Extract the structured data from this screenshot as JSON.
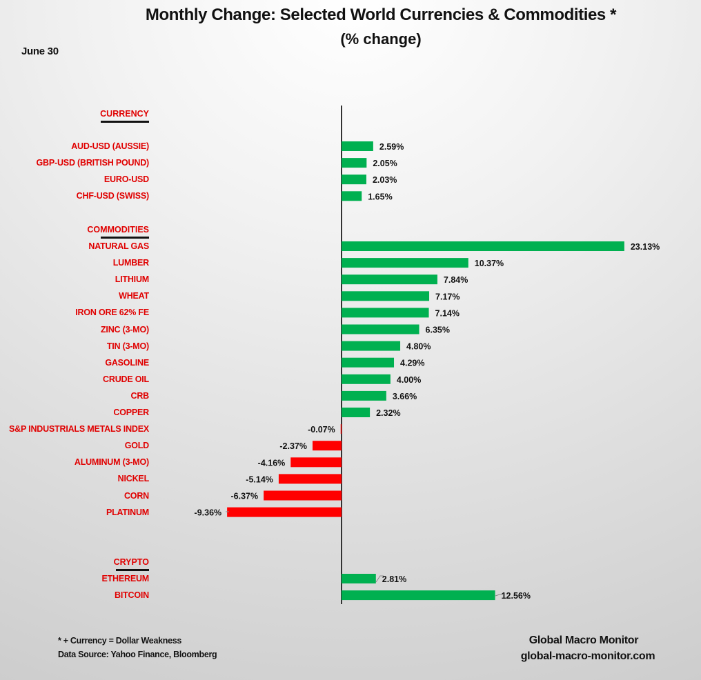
{
  "chart_data": {
    "type": "bar",
    "orientation": "horizontal",
    "title": "Monthly Change: Selected World Currencies & Commodities *",
    "subtitle": "(% change)",
    "date_label": "June 30",
    "xlabel": "",
    "ylabel": "",
    "grid": false,
    "legend": "none",
    "value_suffix": "%",
    "colors": {
      "positive": "#00b050",
      "negative": "#ff0000",
      "label": "#e00000",
      "axis": "#333333"
    },
    "sections": [
      {
        "name": "CURRENCY",
        "items": [
          {
            "label": "AUD-USD (AUSSIE)",
            "value": 2.59
          },
          {
            "label": "GBP-USD (BRITISH POUND)",
            "value": 2.05
          },
          {
            "label": "EURO-USD",
            "value": 2.03
          },
          {
            "label": "CHF-USD (SWISS)",
            "value": 1.65
          }
        ]
      },
      {
        "name": "COMMODITIES",
        "items": [
          {
            "label": "NATURAL GAS",
            "value": 23.13
          },
          {
            "label": "LUMBER",
            "value": 10.37
          },
          {
            "label": "LITHIUM",
            "value": 7.84
          },
          {
            "label": "WHEAT",
            "value": 7.17
          },
          {
            "label": "IRON ORE 62% FE",
            "value": 7.14
          },
          {
            "label": "ZINC (3-MO)",
            "value": 6.35
          },
          {
            "label": "TIN (3-MO)",
            "value": 4.8
          },
          {
            "label": "GASOLINE",
            "value": 4.29
          },
          {
            "label": "CRUDE OIL",
            "value": 4.0
          },
          {
            "label": "CRB",
            "value": 3.66
          },
          {
            "label": "COPPER",
            "value": 2.32
          },
          {
            "label": "S&P INDUSTRIALS METALS INDEX",
            "value": -0.07
          },
          {
            "label": "GOLD",
            "value": -2.37
          },
          {
            "label": "ALUMINUM (3-MO)",
            "value": -4.16
          },
          {
            "label": "NICKEL",
            "value": -5.14
          },
          {
            "label": "CORN",
            "value": -6.37
          },
          {
            "label": "PLATINUM",
            "value": -9.36
          }
        ]
      },
      {
        "name": "CRYPTO",
        "items": [
          {
            "label": "ETHEREUM",
            "value": 2.81
          },
          {
            "label": "BITCOIN",
            "value": 12.56
          }
        ]
      }
    ]
  },
  "footer": {
    "note": "* + Currency = Dollar Weakness",
    "source": "Data Source:  Yahoo Finance, Bloomberg",
    "brand_name": "Global Macro Monitor",
    "brand_url": "global-macro-monitor.com"
  }
}
